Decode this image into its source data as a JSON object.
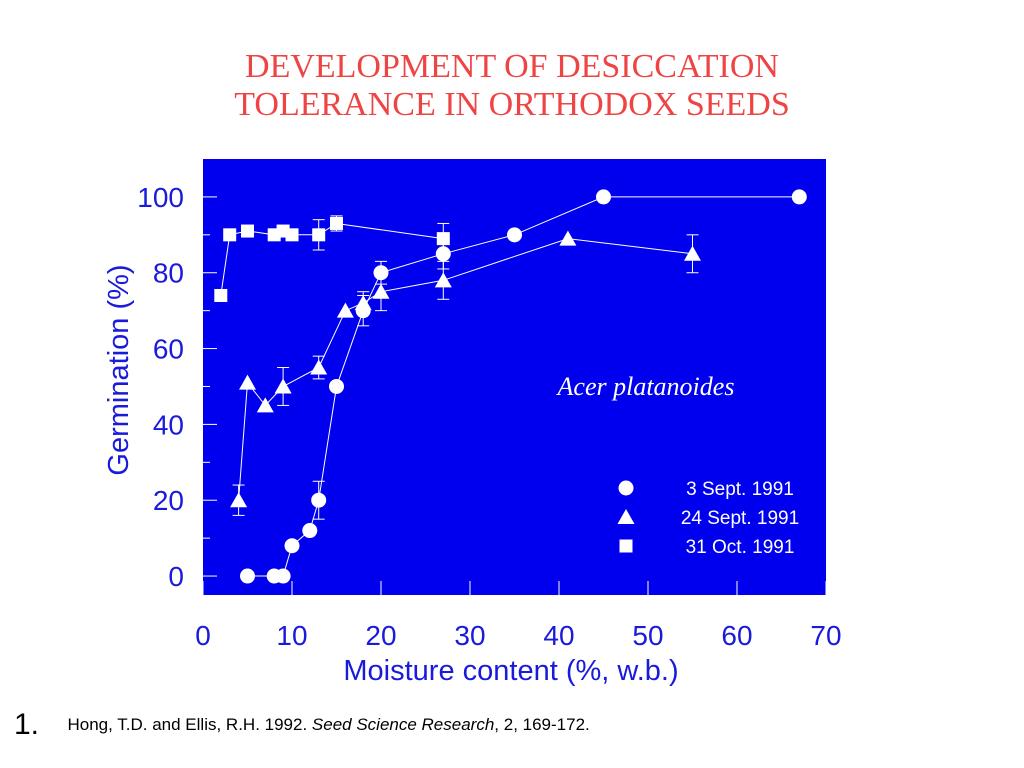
{
  "title": {
    "line1": "DEVELOPMENT OF DESICCATION",
    "line2": "TOLERANCE IN ORTHODOX SEEDS"
  },
  "colors": {
    "title": "#ef4444",
    "plot_background": "#0000ee",
    "axis_text": "#1a1adb",
    "marks": "#ffffff"
  },
  "chart_data": {
    "type": "scatter",
    "xlabel": "Moisture content (%, w.b.)",
    "ylabel": "Germination (%)",
    "xlim": [
      0,
      70
    ],
    "ylim": [
      -5,
      110
    ],
    "xticks": [
      0,
      10,
      20,
      30,
      40,
      50,
      60,
      70
    ],
    "yticks": [
      0,
      20,
      40,
      60,
      80,
      100
    ],
    "grid": false,
    "legend_position": "bottom-right",
    "annotation": "Acer platanoides",
    "series": [
      {
        "name": "3 Sept. 1991",
        "marker": "circle",
        "points": [
          [
            5,
            0
          ],
          [
            8,
            0
          ],
          [
            9,
            0
          ],
          [
            10,
            8
          ],
          [
            12,
            12
          ],
          [
            13,
            20
          ],
          [
            15,
            50
          ],
          [
            18,
            70
          ],
          [
            20,
            80
          ],
          [
            27,
            85
          ],
          [
            35,
            90
          ],
          [
            45,
            100
          ],
          [
            67,
            100
          ]
        ],
        "errors": [
          [
            13,
            5
          ],
          [
            18,
            4
          ],
          [
            20,
            3
          ],
          [
            27,
            4
          ]
        ]
      },
      {
        "name": "24 Sept. 1991",
        "marker": "triangle",
        "points": [
          [
            4,
            20
          ],
          [
            5,
            51
          ],
          [
            7,
            45
          ],
          [
            9,
            50
          ],
          [
            13,
            55
          ],
          [
            16,
            70
          ],
          [
            18,
            72
          ],
          [
            20,
            75
          ],
          [
            27,
            78
          ],
          [
            41,
            89
          ],
          [
            55,
            85
          ]
        ],
        "errors": [
          [
            4,
            4
          ],
          [
            9,
            5
          ],
          [
            13,
            3
          ],
          [
            18,
            3
          ],
          [
            20,
            5
          ],
          [
            27,
            5
          ],
          [
            55,
            5
          ]
        ]
      },
      {
        "name": "31 Oct. 1991",
        "marker": "square",
        "points": [
          [
            2,
            74
          ],
          [
            3,
            90
          ],
          [
            5,
            91
          ],
          [
            8,
            90
          ],
          [
            9,
            91
          ],
          [
            10,
            90
          ],
          [
            13,
            90
          ],
          [
            15,
            93
          ],
          [
            27,
            89
          ]
        ],
        "errors": [
          [
            13,
            4
          ],
          [
            15,
            2
          ],
          [
            27,
            4
          ]
        ]
      }
    ]
  },
  "citation": {
    "number": "1.",
    "authors": "Hong, T.D. and Ellis, R.H. 1992. ",
    "journal": "Seed Science Research",
    "details": ", 2, 169-172."
  }
}
